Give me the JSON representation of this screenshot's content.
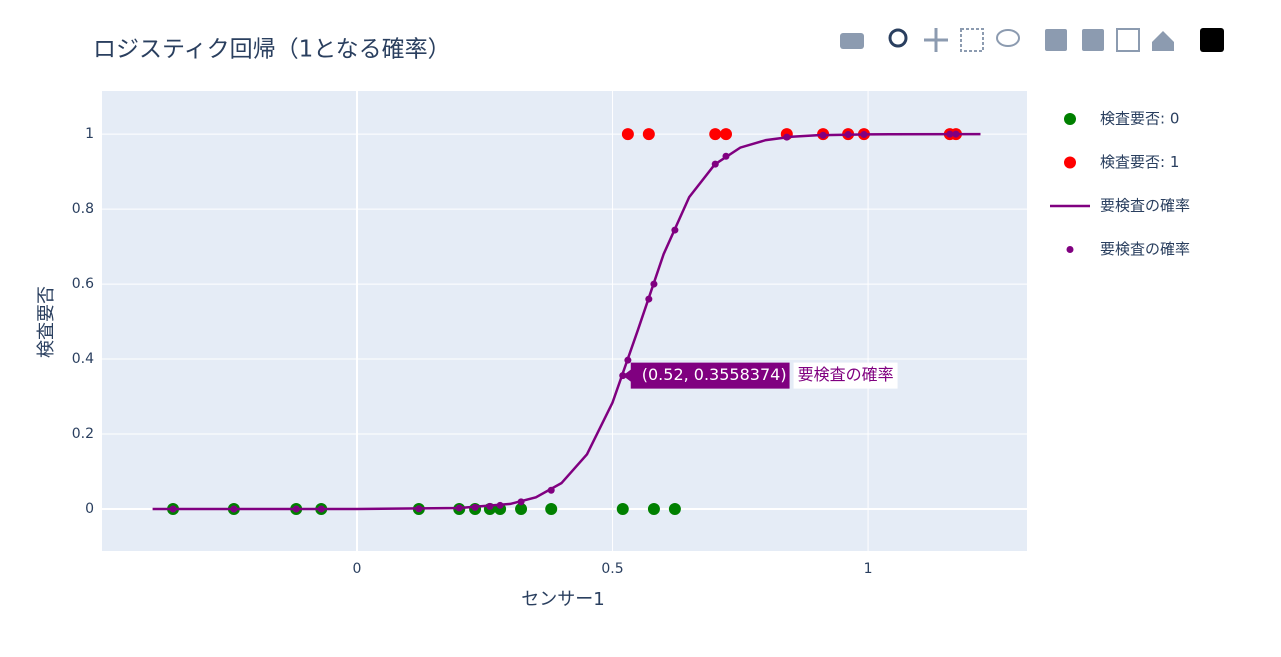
{
  "chart_data": {
    "type": "scatter",
    "title": "ロジスティク回帰（1となる確率）",
    "xlabel": "センサー1",
    "ylabel": "検査要否",
    "xlim": [
      -0.499,
      1.311
    ],
    "ylim": [
      -0.112,
      1.115
    ],
    "xticks": [
      0,
      0.5,
      1
    ],
    "yticks": [
      0,
      0.2,
      0.4,
      0.6,
      0.8,
      1
    ],
    "grid": true,
    "legend": "right",
    "series": [
      {
        "name": "検査要否: 0",
        "mode": "markers",
        "color": "#008000",
        "x": [
          -0.36,
          -0.241,
          -0.119,
          -0.07,
          0.121,
          0.2,
          0.231,
          0.26,
          0.28,
          0.321,
          0.38,
          0.52,
          0.581,
          0.622
        ],
        "values": [
          0,
          0,
          0,
          0,
          0,
          0,
          0,
          0,
          0,
          0,
          0,
          0,
          0,
          0
        ]
      },
      {
        "name": "検査要否: 1",
        "mode": "markers",
        "color": "#ff0000",
        "x": [
          0.53,
          0.571,
          0.701,
          0.722,
          0.841,
          0.912,
          0.961,
          0.992,
          1.16,
          1.172
        ],
        "values": [
          1,
          1,
          1,
          1,
          1,
          1,
          1,
          1,
          1,
          1
        ]
      },
      {
        "name": "要検査の確率",
        "mode": "lines",
        "color": "#800080",
        "x": [
          -0.4,
          0,
          0.2,
          0.3,
          0.35,
          0.4,
          0.45,
          0.5,
          0.55,
          0.6,
          0.65,
          0.7,
          0.75,
          0.8,
          0.85,
          0.9,
          1.0,
          1.22
        ],
        "values": [
          0,
          0.0001,
          0.0026,
          0.0136,
          0.031,
          0.069,
          0.146,
          0.284,
          0.479,
          0.68,
          0.832,
          0.919,
          0.964,
          0.984,
          0.993,
          0.997,
          0.9994,
          1
        ]
      },
      {
        "name": "要検査の確率",
        "mode": "markers-small",
        "color": "#800080",
        "x": [
          -0.36,
          -0.241,
          -0.119,
          -0.07,
          0.121,
          0.2,
          0.231,
          0.26,
          0.28,
          0.321,
          0.38,
          0.52,
          0.53,
          0.571,
          0.581,
          0.622,
          0.701,
          0.722,
          0.841,
          0.912,
          0.961,
          0.992,
          1.16,
          1.172
        ],
        "values": [
          0,
          0,
          0,
          0,
          0.0007,
          0.0026,
          0.0043,
          0.007,
          0.0098,
          0.019,
          0.05,
          0.3558374,
          0.397,
          0.56,
          0.6,
          0.744,
          0.92,
          0.941,
          0.992,
          0.997,
          0.999,
          0.999,
          1,
          1
        ]
      }
    ],
    "hover": {
      "x": 0.52,
      "y": 0.3558374,
      "label": "(0.52, 0.3558374)",
      "name": "要検査の確率"
    }
  }
}
